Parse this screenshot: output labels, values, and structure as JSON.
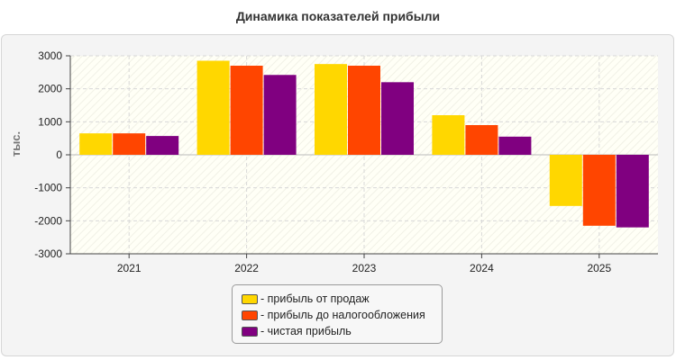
{
  "chart_data": {
    "type": "bar",
    "title": "Динамика показателей прибыли",
    "ylabel": "тыс.",
    "xlabel": "",
    "categories": [
      "2021",
      "2022",
      "2023",
      "2024",
      "2025"
    ],
    "ylim": [
      -3000,
      3000
    ],
    "yticks": [
      3000,
      2000,
      1000,
      0,
      -1000,
      -2000,
      -3000
    ],
    "grid": true,
    "legend_position": "bottom-center",
    "series": [
      {
        "name": "прибыль от продаж",
        "color": "#FFD700",
        "values": [
          650,
          2850,
          2750,
          1200,
          -1550
        ]
      },
      {
        "name": "прибыль до налогообложения",
        "color": "#FF4500",
        "values": [
          650,
          2700,
          2700,
          900,
          -2150
        ]
      },
      {
        "name": "чистая прибыль",
        "color": "#800080",
        "values": [
          570,
          2420,
          2200,
          550,
          -2200
        ]
      }
    ],
    "legend_prefix": "- "
  }
}
